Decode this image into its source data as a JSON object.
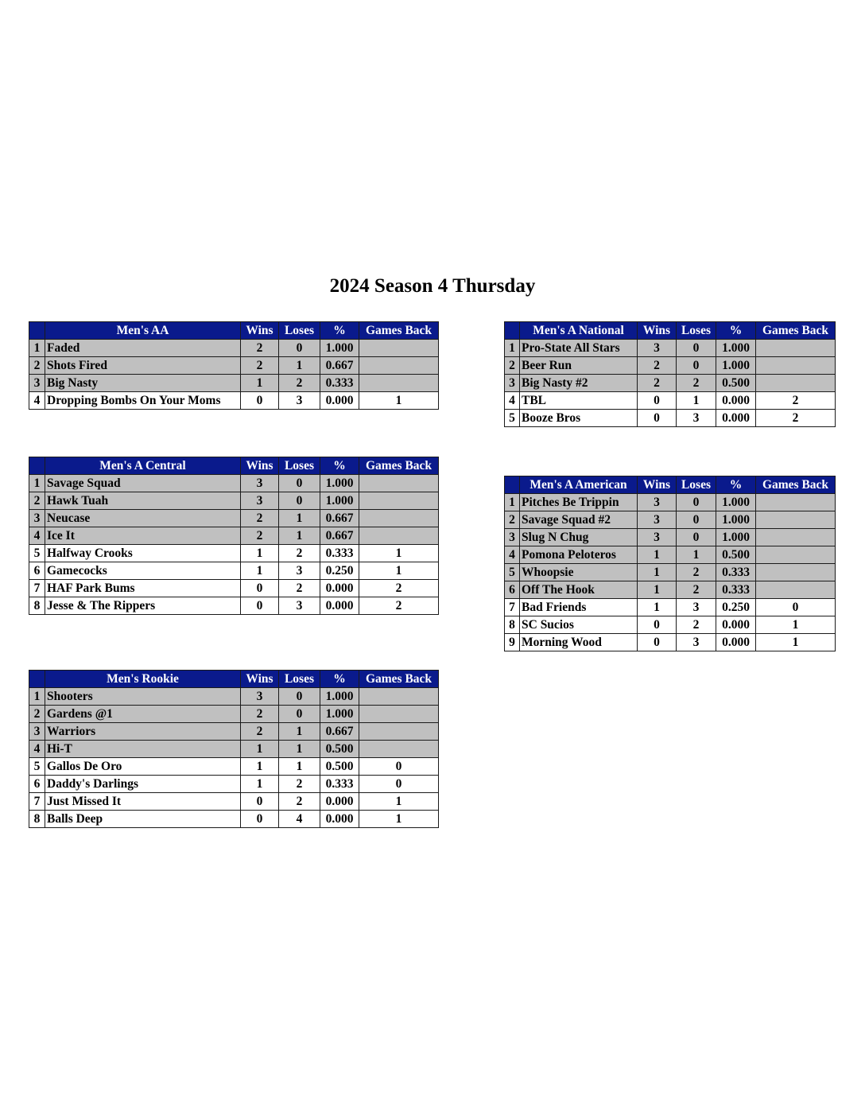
{
  "title": "2024 Season 4 Thursday",
  "colors": {
    "header_bg": "#0a1a8c",
    "header_text": "#ffffff",
    "playoff_row_bg": "#c0c0c0"
  },
  "columns": [
    "Wins",
    "Loses",
    "%",
    "Games Back"
  ],
  "divisions": [
    {
      "name": "Men's AA",
      "rows": [
        [
          "1",
          "Faded",
          "2",
          "0",
          "1.000",
          ""
        ],
        [
          "2",
          "Shots Fired",
          "2",
          "1",
          "0.667",
          ""
        ],
        [
          "3",
          "Big Nasty",
          "1",
          "2",
          "0.333",
          ""
        ],
        [
          "4",
          "Dropping Bombs On Your Moms",
          "0",
          "3",
          "0.000",
          "1"
        ]
      ]
    },
    {
      "name": "Men's A National",
      "rows": [
        [
          "1",
          "Pro-State All Stars",
          "3",
          "0",
          "1.000",
          ""
        ],
        [
          "2",
          "Beer Run",
          "2",
          "0",
          "1.000",
          ""
        ],
        [
          "3",
          "Big Nasty #2",
          "2",
          "2",
          "0.500",
          ""
        ],
        [
          "4",
          "TBL",
          "0",
          "1",
          "0.000",
          "2"
        ],
        [
          "5",
          "Booze Bros",
          "0",
          "3",
          "0.000",
          "2"
        ]
      ]
    },
    {
      "name": "Men's A Central",
      "rows": [
        [
          "1",
          "Savage Squad",
          "3",
          "0",
          "1.000",
          ""
        ],
        [
          "2",
          "Hawk Tuah",
          "3",
          "0",
          "1.000",
          ""
        ],
        [
          "3",
          "Neucase",
          "2",
          "1",
          "0.667",
          ""
        ],
        [
          "4",
          "Ice It",
          "2",
          "1",
          "0.667",
          ""
        ],
        [
          "5",
          "Halfway Crooks",
          "1",
          "2",
          "0.333",
          "1"
        ],
        [
          "6",
          "Gamecocks",
          "1",
          "3",
          "0.250",
          "1"
        ],
        [
          "7",
          "HAF Park Bums",
          "0",
          "2",
          "0.000",
          "2"
        ],
        [
          "8",
          "Jesse & The Rippers",
          "0",
          "3",
          "0.000",
          "2"
        ]
      ]
    },
    {
      "name": "Men's A American",
      "rows": [
        [
          "1",
          "Pitches Be Trippin",
          "3",
          "0",
          "1.000",
          ""
        ],
        [
          "2",
          "Savage Squad #2",
          "3",
          "0",
          "1.000",
          ""
        ],
        [
          "3",
          "Slug N Chug",
          "3",
          "0",
          "1.000",
          ""
        ],
        [
          "4",
          "Pomona Peloteros",
          "1",
          "1",
          "0.500",
          ""
        ],
        [
          "5",
          "Whoopsie",
          "1",
          "2",
          "0.333",
          ""
        ],
        [
          "6",
          "Off The Hook",
          "1",
          "2",
          "0.333",
          ""
        ],
        [
          "7",
          "Bad Friends",
          "1",
          "3",
          "0.250",
          "0"
        ],
        [
          "8",
          "SC Sucios",
          "0",
          "2",
          "0.000",
          "1"
        ],
        [
          "9",
          "Morning Wood",
          "0",
          "3",
          "0.000",
          "1"
        ]
      ]
    },
    {
      "name": "Men's Rookie",
      "rows": [
        [
          "1",
          "Shooters",
          "3",
          "0",
          "1.000",
          ""
        ],
        [
          "2",
          "Gardens @1",
          "2",
          "0",
          "1.000",
          ""
        ],
        [
          "3",
          "Warriors",
          "2",
          "1",
          "0.667",
          ""
        ],
        [
          "4",
          "Hi-T",
          "1",
          "1",
          "0.500",
          ""
        ],
        [
          "5",
          "Gallos De Oro",
          "1",
          "1",
          "0.500",
          "0"
        ],
        [
          "6",
          "Daddy's Darlings",
          "1",
          "2",
          "0.333",
          "0"
        ],
        [
          "7",
          "Just Missed It",
          "0",
          "2",
          "0.000",
          "1"
        ],
        [
          "8",
          "Balls Deep",
          "0",
          "4",
          "0.000",
          "1"
        ]
      ]
    }
  ]
}
